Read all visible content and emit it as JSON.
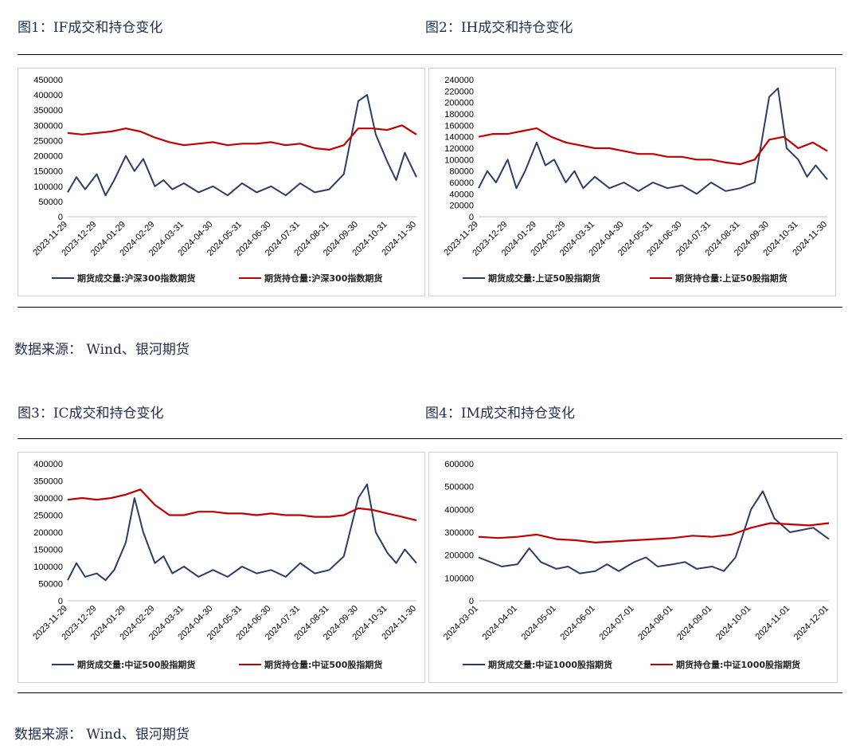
{
  "headings": {
    "fig1": "图1：IF成交和持仓变化",
    "fig2": "图2：IH成交和持仓变化",
    "fig3": "图3：IC成交和持仓变化",
    "fig4": "图4：IM成交和持仓变化"
  },
  "sources": {
    "top": "数据来源： Wind、银河期货",
    "bottom": "数据来源： Wind、银河期货"
  },
  "colors": {
    "volume": "#2b3d66",
    "open_interest": "#c00000"
  },
  "chart_data": [
    {
      "id": "fig1",
      "type": "line",
      "xlabels": [
        "2023-11-29",
        "2023-12-29",
        "2024-01-29",
        "2024-02-29",
        "2024-03-31",
        "2024-04-30",
        "2024-05-31",
        "2024-06-30",
        "2024-07-31",
        "2024-08-31",
        "2024-09-30",
        "2024-10-31",
        "2024-11-30"
      ],
      "ylim": [
        0,
        450000
      ],
      "yticks": [
        0,
        50000,
        100000,
        150000,
        200000,
        250000,
        300000,
        350000,
        400000,
        450000
      ],
      "legend": "bottom",
      "series": [
        {
          "name": "期货成交量:沪深300指数期货",
          "color": "#2b3d66",
          "x": [
            0,
            0.3,
            0.6,
            1,
            1.3,
            1.6,
            2,
            2.3,
            2.6,
            3,
            3.3,
            3.6,
            4,
            4.5,
            5,
            5.5,
            6,
            6.5,
            7,
            7.5,
            8,
            8.5,
            9,
            9.5,
            10,
            10.3,
            10.6,
            11,
            11.3,
            11.6,
            12
          ],
          "values": [
            80000,
            130000,
            90000,
            140000,
            70000,
            120000,
            200000,
            150000,
            190000,
            100000,
            120000,
            90000,
            110000,
            80000,
            100000,
            70000,
            110000,
            80000,
            100000,
            70000,
            110000,
            80000,
            90000,
            140000,
            380000,
            400000,
            270000,
            180000,
            120000,
            210000,
            130000
          ]
        },
        {
          "name": "期货持仓量:沪深300指数期货",
          "color": "#c00000",
          "x": [
            0,
            0.5,
            1,
            1.5,
            2,
            2.5,
            3,
            3.5,
            4,
            4.5,
            5,
            5.5,
            6,
            6.5,
            7,
            7.5,
            8,
            8.5,
            9,
            9.5,
            10,
            10.5,
            11,
            11.5,
            12
          ],
          "values": [
            275000,
            270000,
            275000,
            280000,
            290000,
            280000,
            260000,
            245000,
            235000,
            240000,
            245000,
            235000,
            240000,
            240000,
            245000,
            235000,
            240000,
            225000,
            220000,
            235000,
            290000,
            290000,
            285000,
            300000,
            270000
          ]
        }
      ]
    },
    {
      "id": "fig2",
      "type": "line",
      "xlabels": [
        "2023-11-29",
        "2023-12-29",
        "2024-01-29",
        "2024-02-29",
        "2024-03-31",
        "2024-04-30",
        "2024-05-31",
        "2024-06-30",
        "2024-07-31",
        "2024-08-31",
        "2024-09-30",
        "2024-10-31",
        "2024-11-30"
      ],
      "ylim": [
        0,
        240000
      ],
      "yticks": [
        0,
        20000,
        40000,
        60000,
        80000,
        100000,
        120000,
        140000,
        160000,
        180000,
        200000,
        220000,
        240000
      ],
      "legend": "bottom",
      "series": [
        {
          "name": "期货成交量:上证50股指期货",
          "color": "#2b3d66",
          "x": [
            0,
            0.3,
            0.6,
            1,
            1.3,
            1.6,
            2,
            2.3,
            2.6,
            3,
            3.3,
            3.6,
            4,
            4.5,
            5,
            5.5,
            6,
            6.5,
            7,
            7.5,
            8,
            8.5,
            9,
            9.5,
            10,
            10.3,
            10.6,
            11,
            11.3,
            11.6,
            12
          ],
          "values": [
            50000,
            80000,
            60000,
            100000,
            50000,
            80000,
            130000,
            90000,
            100000,
            60000,
            80000,
            50000,
            70000,
            50000,
            60000,
            45000,
            60000,
            50000,
            55000,
            40000,
            60000,
            45000,
            50000,
            60000,
            210000,
            225000,
            120000,
            100000,
            70000,
            90000,
            65000
          ]
        },
        {
          "name": "期货持仓量:上证50股指期货",
          "color": "#c00000",
          "x": [
            0,
            0.5,
            1,
            1.5,
            2,
            2.5,
            3,
            3.5,
            4,
            4.5,
            5,
            5.5,
            6,
            6.5,
            7,
            7.5,
            8,
            8.5,
            9,
            9.5,
            10,
            10.5,
            11,
            11.5,
            12
          ],
          "values": [
            140000,
            145000,
            145000,
            150000,
            155000,
            140000,
            130000,
            125000,
            120000,
            120000,
            115000,
            110000,
            110000,
            105000,
            105000,
            100000,
            100000,
            95000,
            92000,
            100000,
            135000,
            140000,
            120000,
            130000,
            115000
          ]
        }
      ]
    },
    {
      "id": "fig3",
      "type": "line",
      "xlabels": [
        "2023-11-29",
        "2023-12-29",
        "2024-01-29",
        "2024-02-29",
        "2024-03-31",
        "2024-04-30",
        "2024-05-31",
        "2024-06-30",
        "2024-07-31",
        "2024-08-31",
        "2024-09-30",
        "2024-10-31",
        "2024-11-30"
      ],
      "ylim": [
        0,
        400000
      ],
      "yticks": [
        0,
        50000,
        100000,
        150000,
        200000,
        250000,
        300000,
        350000,
        400000
      ],
      "legend": "bottom",
      "series": [
        {
          "name": "期货成交量:中证500股指期货",
          "color": "#2b3d66",
          "x": [
            0,
            0.3,
            0.6,
            1,
            1.3,
            1.6,
            2,
            2.3,
            2.6,
            3,
            3.3,
            3.6,
            4,
            4.5,
            5,
            5.5,
            6,
            6.5,
            7,
            7.5,
            8,
            8.5,
            9,
            9.5,
            10,
            10.3,
            10.6,
            11,
            11.3,
            11.6,
            12
          ],
          "values": [
            60000,
            110000,
            70000,
            80000,
            60000,
            90000,
            170000,
            300000,
            200000,
            110000,
            130000,
            80000,
            100000,
            70000,
            90000,
            70000,
            100000,
            80000,
            90000,
            70000,
            110000,
            80000,
            90000,
            130000,
            300000,
            340000,
            200000,
            140000,
            110000,
            150000,
            110000
          ]
        },
        {
          "name": "期货持仓量:中证500股指期货",
          "color": "#c00000",
          "x": [
            0,
            0.5,
            1,
            1.5,
            2,
            2.5,
            3,
            3.5,
            4,
            4.5,
            5,
            5.5,
            6,
            6.5,
            7,
            7.5,
            8,
            8.5,
            9,
            9.5,
            10,
            10.5,
            11,
            11.5,
            12
          ],
          "values": [
            295000,
            300000,
            295000,
            300000,
            310000,
            325000,
            280000,
            250000,
            250000,
            260000,
            260000,
            255000,
            255000,
            250000,
            255000,
            250000,
            250000,
            245000,
            245000,
            250000,
            270000,
            265000,
            255000,
            245000,
            235000
          ]
        }
      ]
    },
    {
      "id": "fig4",
      "type": "line",
      "xlabels": [
        "2024-03-01",
        "2024-04-01",
        "2024-05-01",
        "2024-06-01",
        "2024-07-01",
        "2024-08-01",
        "2024-09-01",
        "2024-10-01",
        "2024-11-01",
        "2024-12-01"
      ],
      "ylim": [
        0,
        600000
      ],
      "yticks": [
        0,
        100000,
        200000,
        300000,
        400000,
        500000,
        600000
      ],
      "legend": "bottom",
      "series": [
        {
          "name": "期货成交量:中证1000股指期货",
          "color": "#2b3d66",
          "x": [
            0,
            0.3,
            0.6,
            1,
            1.3,
            1.6,
            2,
            2.3,
            2.6,
            3,
            3.3,
            3.6,
            4,
            4.3,
            4.6,
            5,
            5.3,
            5.6,
            6,
            6.3,
            6.6,
            7,
            7.3,
            7.6,
            8,
            8.3,
            8.6,
            9
          ],
          "values": [
            190000,
            170000,
            150000,
            160000,
            230000,
            170000,
            140000,
            150000,
            120000,
            130000,
            160000,
            130000,
            170000,
            190000,
            150000,
            160000,
            170000,
            140000,
            150000,
            130000,
            190000,
            400000,
            480000,
            360000,
            300000,
            310000,
            320000,
            270000
          ]
        },
        {
          "name": "期货持仓量:中证1000股指期货",
          "color": "#c00000",
          "x": [
            0,
            0.5,
            1,
            1.5,
            2,
            2.5,
            3,
            3.5,
            4,
            4.5,
            5,
            5.5,
            6,
            6.5,
            7,
            7.5,
            8,
            8.5,
            9
          ],
          "values": [
            280000,
            275000,
            280000,
            290000,
            270000,
            265000,
            255000,
            260000,
            265000,
            270000,
            275000,
            285000,
            280000,
            290000,
            320000,
            340000,
            335000,
            330000,
            340000
          ]
        }
      ]
    }
  ]
}
